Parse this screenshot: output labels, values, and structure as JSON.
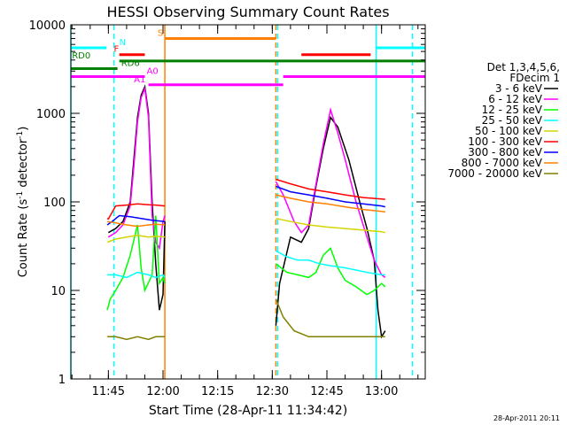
{
  "chart_data": {
    "type": "line",
    "title": "HESSI Observing Summary Count Rates",
    "xlabel": "Start Time (28-Apr-11 11:34:42)",
    "ylabel": "Count Rate (s⁻¹ detector⁻¹)",
    "ylabel_parts": {
      "base": "Count Rate (s",
      "sup1": "-1",
      "mid": " detector",
      "sup2": "-1",
      "end": ")"
    },
    "yscale": "log",
    "xlim": [
      "11:34:42",
      "13:12:00"
    ],
    "ylim": [
      1,
      10000
    ],
    "x_ticks": [
      "11:45",
      "12:00",
      "12:15",
      "12:30",
      "12:45",
      "13:00"
    ],
    "y_ticks": [
      {
        "value": 1,
        "label": "1"
      },
      {
        "value": 10,
        "label": "10"
      },
      {
        "value": 100,
        "label": "100"
      },
      {
        "value": 1000,
        "label": "1000"
      },
      {
        "value": 10000,
        "label": "10000"
      }
    ],
    "timestamp": "28-Apr-2011 20:11",
    "legend": {
      "header": [
        "Det 1,3,4,5,6,",
        "FDecim 1"
      ],
      "entries": [
        {
          "label": "3 - 6 keV",
          "color": "#000000"
        },
        {
          "label": "6 - 12 keV",
          "color": "#ff00ff"
        },
        {
          "label": "12 - 25 keV",
          "color": "#00ff00"
        },
        {
          "label": "25 - 50 keV",
          "color": "#00ffff"
        },
        {
          "label": "50 - 100 keV",
          "color": "#d4d400"
        },
        {
          "label": "100 - 300 keV",
          "color": "#ff0000"
        },
        {
          "label": "300 - 800 keV",
          "color": "#0000ff"
        },
        {
          "label": "800 - 7000 keV",
          "color": "#ff8000"
        },
        {
          "label": "7000 - 20000 keV",
          "color": "#808000"
        }
      ]
    },
    "flags": [
      {
        "label": "N",
        "color": "#00ffff",
        "y": 5500,
        "segments": [
          [
            "11:34:42",
            "11:44:30"
          ],
          [
            "12:58:30",
            "13:12:00"
          ]
        ]
      },
      {
        "label": "S",
        "color": "#ff8000",
        "y": 7000,
        "segments": [
          [
            "12:00:30",
            "12:31:00"
          ]
        ]
      },
      {
        "label": "F",
        "color": "#ff0000",
        "y": 4600,
        "segments": [
          [
            "11:48:00",
            "11:55:00"
          ],
          [
            "12:38:00",
            "12:57:00"
          ]
        ]
      },
      {
        "label": "RD0",
        "color": "#007f00",
        "y": 3900,
        "segments": [
          [
            "11:48:00",
            "13:12:00"
          ]
        ]
      },
      {
        "label": "RD6",
        "color": "#007f00",
        "y": 3200,
        "segments": [
          [
            "11:34:42",
            "11:47:30"
          ]
        ]
      },
      {
        "label": "A0",
        "color": "#ff00ff",
        "y": 2600,
        "segments": [
          [
            "11:34:42",
            "11:55:00"
          ],
          [
            "12:33:00",
            "13:12:00"
          ]
        ]
      },
      {
        "label": "A1",
        "color": "#ff00ff",
        "y": 2100,
        "segments": [
          [
            "11:56:00",
            "12:33:00"
          ]
        ]
      }
    ],
    "vlines": [
      {
        "x": "11:34:42",
        "color": "#00ffff",
        "style": "solid"
      },
      {
        "x": "11:46:30",
        "color": "#00ffff",
        "style": "dashed"
      },
      {
        "x": "12:00:30",
        "color": "#ff8000",
        "style": "solid"
      },
      {
        "x": "12:31:00",
        "color": "#ff8000",
        "style": "dashed"
      },
      {
        "x": "12:31:30",
        "color": "#00ffff",
        "style": "dashed"
      },
      {
        "x": "12:58:30",
        "color": "#00ffff",
        "style": "solid"
      },
      {
        "x": "13:08:30",
        "color": "#00ffff",
        "style": "dashed"
      }
    ],
    "series": [
      {
        "name": "3 - 6 keV",
        "color": "#000000",
        "segments": [
          [
            [
              "11:45:00",
              45
            ],
            [
              "11:47:00",
              50
            ],
            [
              "11:49:00",
              60
            ],
            [
              "11:51:00",
              100
            ],
            [
              "11:52:00",
              300
            ],
            [
              "11:53:00",
              900
            ],
            [
              "11:54:00",
              1600
            ],
            [
              "11:55:00",
              2000
            ],
            [
              "11:56:00",
              1000
            ],
            [
              "11:57:00",
              100
            ],
            [
              "11:58:00",
              20
            ],
            [
              "11:59:00",
              6
            ],
            [
              "12:00:00",
              9
            ],
            [
              "12:00:30",
              60
            ]
          ],
          [
            [
              "12:31:00",
              4
            ],
            [
              "12:32:00",
              12
            ],
            [
              "12:35:00",
              40
            ],
            [
              "12:38:00",
              35
            ],
            [
              "12:40:00",
              50
            ],
            [
              "12:42:00",
              150
            ],
            [
              "12:44:00",
              400
            ],
            [
              "12:46:00",
              900
            ],
            [
              "12:48:00",
              700
            ],
            [
              "12:51:00",
              300
            ],
            [
              "12:54:00",
              100
            ],
            [
              "12:56:00",
              50
            ],
            [
              "12:58:00",
              22
            ],
            [
              "12:59:00",
              6
            ],
            [
              "13:00:00",
              3
            ],
            [
              "13:01:00",
              3.5
            ]
          ]
        ]
      },
      {
        "name": "6 - 12 keV",
        "color": "#ff00ff",
        "segments": [
          [
            [
              "11:45:00",
              40
            ],
            [
              "11:47:00",
              45
            ],
            [
              "11:49:00",
              55
            ],
            [
              "11:51:00",
              90
            ],
            [
              "11:52:00",
              250
            ],
            [
              "11:53:00",
              800
            ],
            [
              "11:54:00",
              1500
            ],
            [
              "11:55:00",
              1900
            ],
            [
              "11:56:00",
              900
            ],
            [
              "11:57:00",
              70
            ],
            [
              "11:58:00",
              35
            ],
            [
              "11:59:00",
              30
            ],
            [
              "12:00:00",
              60
            ],
            [
              "12:00:30",
              70
            ]
          ],
          [
            [
              "12:31:00",
              170
            ],
            [
              "12:33:00",
              120
            ],
            [
              "12:36:00",
              60
            ],
            [
              "12:38:00",
              45
            ],
            [
              "12:40:00",
              55
            ],
            [
              "12:42:00",
              160
            ],
            [
              "12:44:00",
              450
            ],
            [
              "12:46:00",
              1100
            ],
            [
              "12:48:00",
              600
            ],
            [
              "12:50:00",
              300
            ],
            [
              "12:53:00",
              100
            ],
            [
              "12:56:00",
              40
            ],
            [
              "12:58:00",
              22
            ],
            [
              "13:00:00",
              15
            ],
            [
              "13:01:00",
              14
            ]
          ]
        ]
      },
      {
        "name": "12 - 25 keV",
        "color": "#00ff00",
        "segments": [
          [
            [
              "11:44:42",
              6
            ],
            [
              "11:45:30",
              8
            ],
            [
              "11:47:00",
              10
            ],
            [
              "11:49:00",
              14
            ],
            [
              "11:51:00",
              25
            ],
            [
              "11:53:00",
              55
            ],
            [
              "11:54:00",
              18
            ],
            [
              "11:55:00",
              10
            ],
            [
              "11:57:00",
              15
            ],
            [
              "11:58:00",
              70
            ],
            [
              "11:59:00",
              12
            ],
            [
              "12:00:00",
              14
            ],
            [
              "12:00:30",
              12
            ]
          ],
          [
            [
              "12:31:00",
              20
            ],
            [
              "12:34:00",
              16
            ],
            [
              "12:37:00",
              15
            ],
            [
              "12:40:00",
              14
            ],
            [
              "12:42:00",
              16
            ],
            [
              "12:44:00",
              25
            ],
            [
              "12:46:00",
              30
            ],
            [
              "12:48:00",
              18
            ],
            [
              "12:50:00",
              13
            ],
            [
              "12:53:00",
              11
            ],
            [
              "12:56:00",
              9
            ],
            [
              "12:58:00",
              10
            ],
            [
              "13:00:00",
              12
            ],
            [
              "13:01:00",
              11
            ]
          ]
        ]
      },
      {
        "name": "25 - 50 keV",
        "color": "#00ffff",
        "segments": [
          [
            [
              "11:44:42",
              15
            ],
            [
              "11:47:00",
              15
            ],
            [
              "11:50:00",
              14
            ],
            [
              "11:53:00",
              16
            ],
            [
              "11:56:00",
              15
            ],
            [
              "11:58:00",
              14
            ],
            [
              "12:00:00",
              15
            ],
            [
              "12:00:30",
              14
            ]
          ],
          [
            [
              "12:31:00",
              28
            ],
            [
              "12:34:00",
              24
            ],
            [
              "12:37:00",
              22
            ],
            [
              "12:40:00",
              22
            ],
            [
              "12:43:00",
              20
            ],
            [
              "12:46:00",
              19
            ],
            [
              "12:50:00",
              18
            ],
            [
              "12:53:00",
              17
            ],
            [
              "12:56:00",
              16
            ],
            [
              "13:00:00",
              15
            ],
            [
              "13:01:00",
              15
            ]
          ]
        ]
      },
      {
        "name": "50 - 100 keV",
        "color": "#d4d400",
        "segments": [
          [
            [
              "11:44:42",
              35
            ],
            [
              "11:47:00",
              38
            ],
            [
              "11:50:00",
              40
            ],
            [
              "11:53:00",
              42
            ],
            [
              "11:56:00",
              40
            ],
            [
              "11:58:00",
              41
            ],
            [
              "12:00:30",
              40
            ]
          ],
          [
            [
              "12:31:00",
              65
            ],
            [
              "12:35:00",
              60
            ],
            [
              "12:40:00",
              55
            ],
            [
              "12:45:00",
              52
            ],
            [
              "12:50:00",
              50
            ],
            [
              "12:55:00",
              48
            ],
            [
              "13:00:00",
              46
            ],
            [
              "13:01:00",
              45
            ]
          ]
        ]
      },
      {
        "name": "100 - 300 keV",
        "color": "#ff0000",
        "segments": [
          [
            [
              "11:44:42",
              65
            ],
            [
              "11:45:00",
              64
            ],
            [
              "11:47:00",
              90
            ],
            [
              "11:50:00",
              92
            ],
            [
              "11:53:00",
              95
            ],
            [
              "11:56:00",
              93
            ],
            [
              "11:58:00",
              92
            ],
            [
              "12:00:30",
              90
            ]
          ],
          [
            [
              "12:31:00",
              180
            ],
            [
              "12:35:00",
              160
            ],
            [
              "12:40:00",
              140
            ],
            [
              "12:45:00",
              130
            ],
            [
              "12:50:00",
              120
            ],
            [
              "12:55:00",
              112
            ],
            [
              "13:00:00",
              108
            ],
            [
              "13:01:00",
              107
            ]
          ]
        ]
      },
      {
        "name": "300 - 800 keV",
        "color": "#0000ff",
        "segments": [
          [
            [
              "11:44:42",
              55
            ],
            [
              "11:46:00",
              60
            ],
            [
              "11:48:00",
              70
            ],
            [
              "11:51:00",
              68
            ],
            [
              "11:54:00",
              65
            ],
            [
              "11:57:00",
              62
            ],
            [
              "12:00:30",
              60
            ]
          ],
          [
            [
              "12:31:00",
              150
            ],
            [
              "12:35:00",
              130
            ],
            [
              "12:40:00",
              120
            ],
            [
              "12:45:00",
              110
            ],
            [
              "12:50:00",
              100
            ],
            [
              "12:55:00",
              95
            ],
            [
              "13:00:00",
              90
            ],
            [
              "13:01:00",
              88
            ]
          ]
        ]
      },
      {
        "name": "800 - 7000 keV",
        "color": "#ff8000",
        "segments": [
          [
            [
              "11:44:42",
              60
            ],
            [
              "11:47:00",
              58
            ],
            [
              "11:50:00",
              55
            ],
            [
              "11:53:00",
              53
            ],
            [
              "11:56:00",
              55
            ],
            [
              "11:58:00",
              56
            ],
            [
              "12:00:30",
              55
            ]
          ],
          [
            [
              "12:31:00",
              120
            ],
            [
              "12:35:00",
              110
            ],
            [
              "12:40:00",
              100
            ],
            [
              "12:45:00",
              95
            ],
            [
              "12:50:00",
              88
            ],
            [
              "12:55:00",
              82
            ],
            [
              "13:00:00",
              78
            ],
            [
              "13:01:00",
              77
            ]
          ]
        ]
      },
      {
        "name": "7000 - 20000 keV",
        "color": "#808000",
        "segments": [
          [
            [
              "11:44:42",
              3
            ],
            [
              "11:47:00",
              3
            ],
            [
              "11:50:00",
              2.8
            ],
            [
              "11:53:00",
              3
            ],
            [
              "11:56:00",
              2.8
            ],
            [
              "11:58:00",
              3
            ],
            [
              "12:00:30",
              3
            ]
          ],
          [
            [
              "12:31:00",
              8
            ],
            [
              "12:33:00",
              5
            ],
            [
              "12:36:00",
              3.5
            ],
            [
              "12:40:00",
              3
            ],
            [
              "12:45:00",
              3
            ],
            [
              "12:50:00",
              3
            ],
            [
              "12:55:00",
              3
            ],
            [
              "13:00:00",
              3
            ],
            [
              "13:01:00",
              3
            ]
          ]
        ]
      }
    ]
  }
}
